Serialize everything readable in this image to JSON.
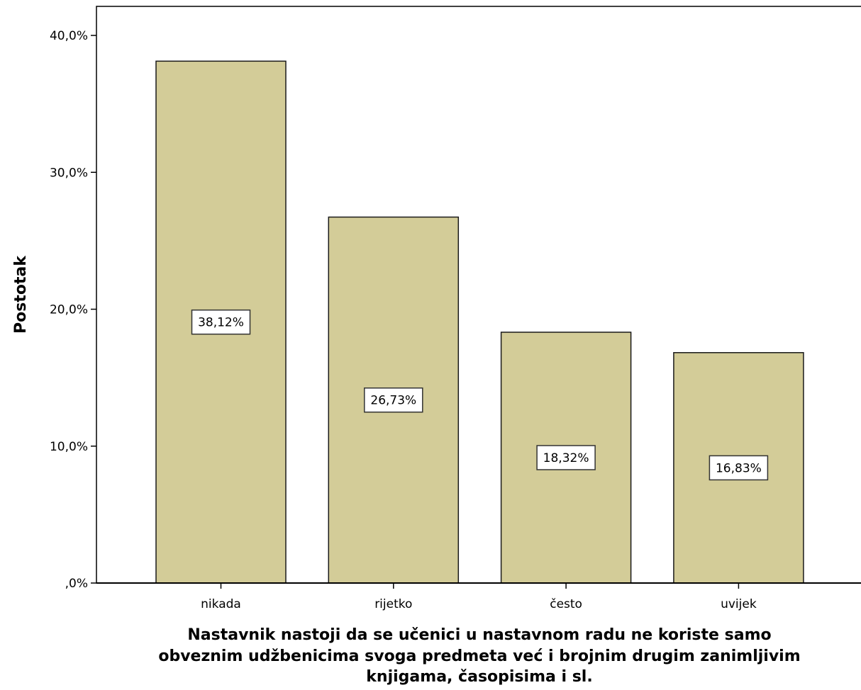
{
  "chart_data": {
    "type": "bar",
    "categories": [
      "nikada",
      "rijetko",
      "često",
      "uvijek"
    ],
    "values": [
      38.12,
      26.73,
      18.32,
      16.83
    ],
    "data_labels": [
      "38,12%",
      "26,73%",
      "18,32%",
      "16,83%"
    ],
    "ylabel": "Postotak",
    "xlabel_lines": [
      "Nastavnik nastoji da se učenici u nastavnom radu ne koriste samo",
      "obveznim udžbenicima svoga predmeta već i brojnim drugim zanimljivim",
      "knjigama, časopisima i sl."
    ],
    "ylim": [
      0,
      42
    ],
    "yticks": [
      0,
      10,
      20,
      30,
      40
    ],
    "ytick_labels": [
      ",0%",
      "10,0%",
      "20,0%",
      "30,0%",
      "40,0%"
    ],
    "grid": false,
    "colors": {
      "bar_fill": "#d3cc98",
      "bar_stroke": "#1a1a1a",
      "axis": "#000000"
    }
  }
}
